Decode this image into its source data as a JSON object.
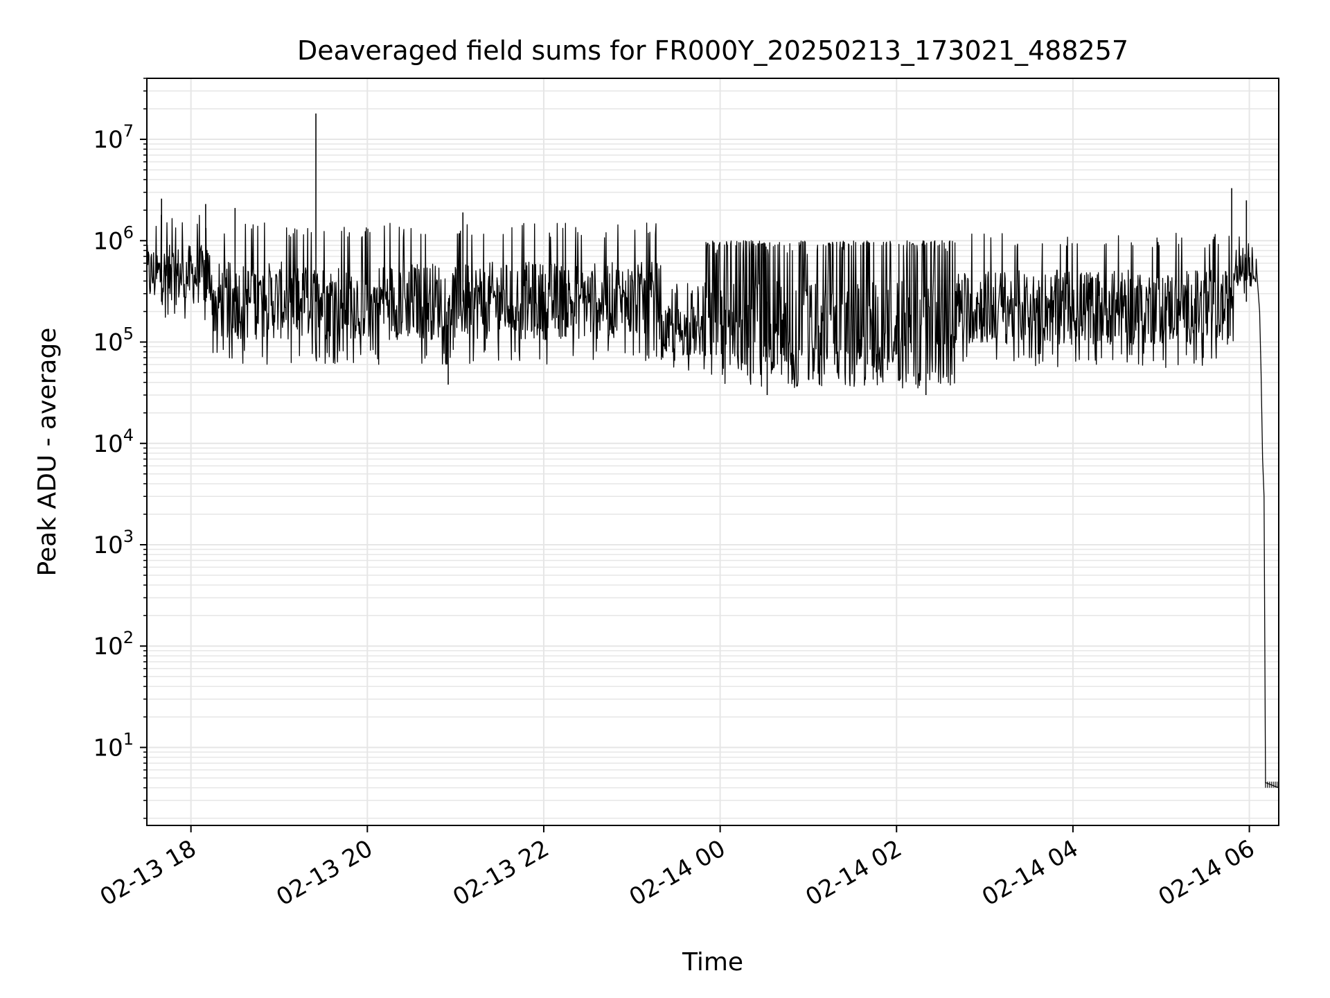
{
  "chart_data": {
    "type": "line",
    "title": "Deaveraged field sums for FR000Y_20250213_173021_488257",
    "xlabel": "Time",
    "ylabel": "Peak ADU - average",
    "yscale": "log",
    "xlim": [
      "2025-02-13 17:30",
      "2025-02-14 06:20"
    ],
    "ylim": [
      1.7,
      40000000
    ],
    "grid": true,
    "line_color": "#000000",
    "grid_color": "#e6e6e6",
    "x_ticks": [
      {
        "value": "2025-02-13 18:00",
        "label": "02-13 18"
      },
      {
        "value": "2025-02-13 20:00",
        "label": "02-13 20"
      },
      {
        "value": "2025-02-13 22:00",
        "label": "02-13 22"
      },
      {
        "value": "2025-02-14 00:00",
        "label": "02-14 00"
      },
      {
        "value": "2025-02-14 02:00",
        "label": "02-14 02"
      },
      {
        "value": "2025-02-14 04:00",
        "label": "02-14 04"
      },
      {
        "value": "2025-02-14 06:00",
        "label": "02-14 06"
      }
    ],
    "y_ticks": [
      {
        "value": 10,
        "base": "10",
        "exp": "1"
      },
      {
        "value": 100,
        "base": "10",
        "exp": "2"
      },
      {
        "value": 1000,
        "base": "10",
        "exp": "3"
      },
      {
        "value": 10000,
        "base": "10",
        "exp": "4"
      },
      {
        "value": 100000,
        "base": "10",
        "exp": "5"
      },
      {
        "value": 1000000,
        "base": "10",
        "exp": "6"
      },
      {
        "value": 10000000,
        "base": "10",
        "exp": "7"
      }
    ],
    "series": [
      {
        "segments": [
          {
            "start": "2025-02-13 17:30",
            "end": "2025-02-13 18:15",
            "low": 150000,
            "high": 1800000
          },
          {
            "start": "2025-02-13 18:15",
            "end": "2025-02-13 20:00",
            "low": 60000,
            "high": 1500000
          },
          {
            "start": "2025-02-13 20:00",
            "end": "2025-02-13 23:20",
            "low": 60000,
            "high": 1500000
          },
          {
            "start": "2025-02-13 23:20",
            "end": "2025-02-13 23:50",
            "low": 50000,
            "high": 400000
          },
          {
            "start": "2025-02-13 23:50",
            "end": "2025-02-14 02:40",
            "low": 35000,
            "high": 1000000
          },
          {
            "start": "2025-02-14 02:40",
            "end": "2025-02-14 05:50",
            "low": 55000,
            "high": 1200000
          },
          {
            "start": "2025-02-14 05:50",
            "end": "2025-02-14 06:05",
            "low": 300000,
            "high": 1300000
          }
        ],
        "points": [
          {
            "x": "2025-02-13 17:40",
            "y": 2600000
          },
          {
            "x": "2025-02-13 18:10",
            "y": 2300000
          },
          {
            "x": "2025-02-13 18:30",
            "y": 2100000
          },
          {
            "x": "2025-02-13 19:25",
            "y": 18000000
          },
          {
            "x": "2025-02-13 20:55",
            "y": 38000
          },
          {
            "x": "2025-02-13 21:05",
            "y": 1900000
          },
          {
            "x": "2025-02-14 00:32",
            "y": 30000
          },
          {
            "x": "2025-02-14 02:20",
            "y": 30000
          },
          {
            "x": "2025-02-14 05:48",
            "y": 3300000
          },
          {
            "x": "2025-02-14 05:58",
            "y": 2500000
          },
          {
            "x": "2025-02-14 06:05",
            "y": 500000
          },
          {
            "x": "2025-02-14 06:07",
            "y": 200000
          },
          {
            "x": "2025-02-14 06:08",
            "y": 50000
          },
          {
            "x": "2025-02-14 06:09",
            "y": 7000
          },
          {
            "x": "2025-02-14 06:10",
            "y": 3000
          },
          {
            "x": "2025-02-14 06:11",
            "y": 4.5
          },
          {
            "x": "2025-02-14 06:20",
            "y": 4.0
          }
        ]
      }
    ]
  }
}
